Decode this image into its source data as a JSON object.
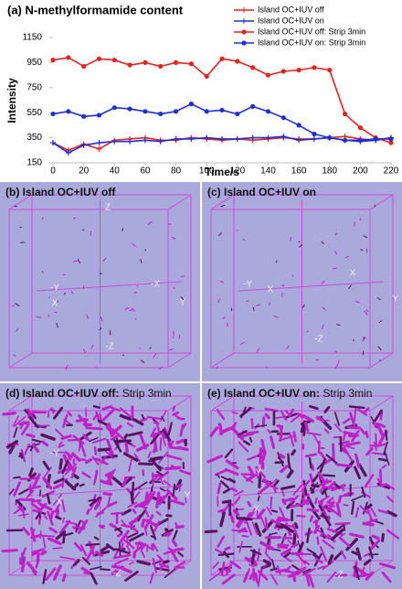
{
  "chart_data": {
    "type": "line",
    "title": "(a) N-methylformamide content",
    "xlabel": "Time/s",
    "ylabel": "Intensity",
    "x": [
      0,
      10,
      20,
      30,
      40,
      50,
      60,
      70,
      80,
      90,
      100,
      110,
      120,
      130,
      140,
      150,
      160,
      170,
      180,
      190,
      200,
      210,
      220
    ],
    "xlim": [
      0,
      220
    ],
    "xticks": [
      0,
      20,
      40,
      60,
      80,
      100,
      120,
      140,
      160,
      180,
      200,
      220
    ],
    "ylim": [
      150,
      1150
    ],
    "yticks": [
      150,
      350,
      550,
      750,
      950,
      1150
    ],
    "legend": "top-right",
    "series": [
      {
        "name": "Island OC+IUV off",
        "color": "#e8221c",
        "marker": "plus",
        "values": [
          310,
          250,
          300,
          260,
          330,
          340,
          350,
          330,
          330,
          350,
          340,
          330,
          340,
          330,
          340,
          350,
          340,
          340,
          350,
          360,
          340,
          330,
          350
        ]
      },
      {
        "name": "Island OC+IUV on",
        "color": "#1f2fd6",
        "marker": "plus",
        "values": [
          310,
          230,
          290,
          310,
          320,
          320,
          330,
          320,
          340,
          340,
          350,
          340,
          340,
          350,
          350,
          360,
          330,
          340,
          350,
          330,
          320,
          330,
          350
        ]
      },
      {
        "name": "Island OC+IUV off: Strip 3min",
        "color": "#e8221c",
        "marker": "circle",
        "values": [
          970,
          990,
          920,
          980,
          970,
          930,
          950,
          920,
          950,
          940,
          840,
          980,
          960,
          910,
          850,
          880,
          890,
          910,
          890,
          540,
          430,
          350,
          310
        ]
      },
      {
        "name": "Island OC+IUV on: Strip 3min",
        "color": "#1f2fd6",
        "marker": "circle",
        "values": [
          540,
          560,
          520,
          530,
          590,
          580,
          560,
          540,
          560,
          620,
          560,
          570,
          540,
          600,
          560,
          510,
          450,
          380,
          350,
          330,
          330,
          340,
          340
        ]
      }
    ]
  },
  "panels": [
    {
      "label": "(b) Island OC+IUV off",
      "axes": [
        "Z",
        "-Y",
        "-X",
        "X",
        "Y",
        "-Z"
      ]
    },
    {
      "label": "(c) Island OC+IUV on",
      "axes": [
        "-Y",
        "X",
        "X",
        "Y",
        "-Z"
      ]
    },
    {
      "label": "(d) Island OC+IUV off:",
      "suffix": "Strip 3min",
      "axes": [
        "-Y",
        "X",
        "Y",
        "-Z"
      ]
    },
    {
      "label": "(e) Island OC+IUV on:",
      "suffix": "Strip 3min",
      "axes": [
        "Y",
        "X",
        "-Z"
      ]
    }
  ]
}
